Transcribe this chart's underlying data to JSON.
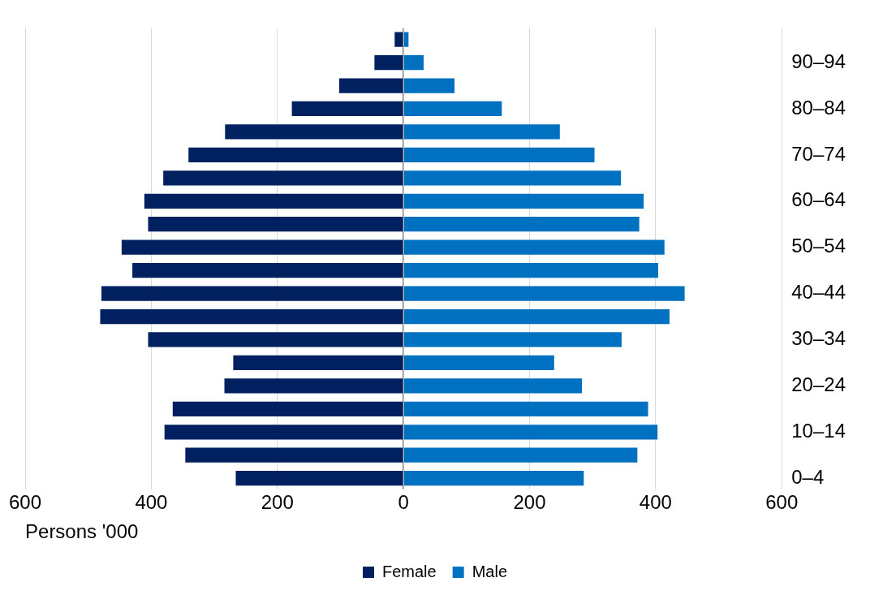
{
  "chart_data": {
    "type": "bar",
    "orientation": "horizontal",
    "stacked": true,
    "xlabel": "Persons '000",
    "categories": [
      null,
      "90–94",
      null,
      "80–84",
      null,
      "70–74",
      null,
      "60–64",
      null,
      "50–54",
      null,
      "40–44",
      null,
      "30–34",
      null,
      "20–24",
      null,
      "10–14",
      null,
      "0–4"
    ],
    "series": [
      {
        "name": "Female",
        "color": "#002060",
        "values": [
          -14,
          -46,
          -102,
          -177,
          -283,
          -341,
          -381,
          -411,
          -405,
          -447,
          -430,
          -479,
          -481,
          -405,
          -270,
          -284,
          -366,
          -379,
          -346,
          -266
        ]
      },
      {
        "name": "Male",
        "color": "#0070c0",
        "values": [
          8,
          32,
          81,
          156,
          248,
          303,
          345,
          381,
          374,
          414,
          404,
          446,
          422,
          346,
          239,
          283,
          388,
          403,
          371,
          286
        ]
      }
    ],
    "xlim": [
      -600,
      600
    ],
    "xticks": [
      {
        "value": -600,
        "label": "600"
      },
      {
        "value": -400,
        "label": "400"
      },
      {
        "value": -200,
        "label": "200"
      },
      0,
      200,
      400,
      600
    ],
    "grid": "x",
    "legend": "bottom"
  }
}
